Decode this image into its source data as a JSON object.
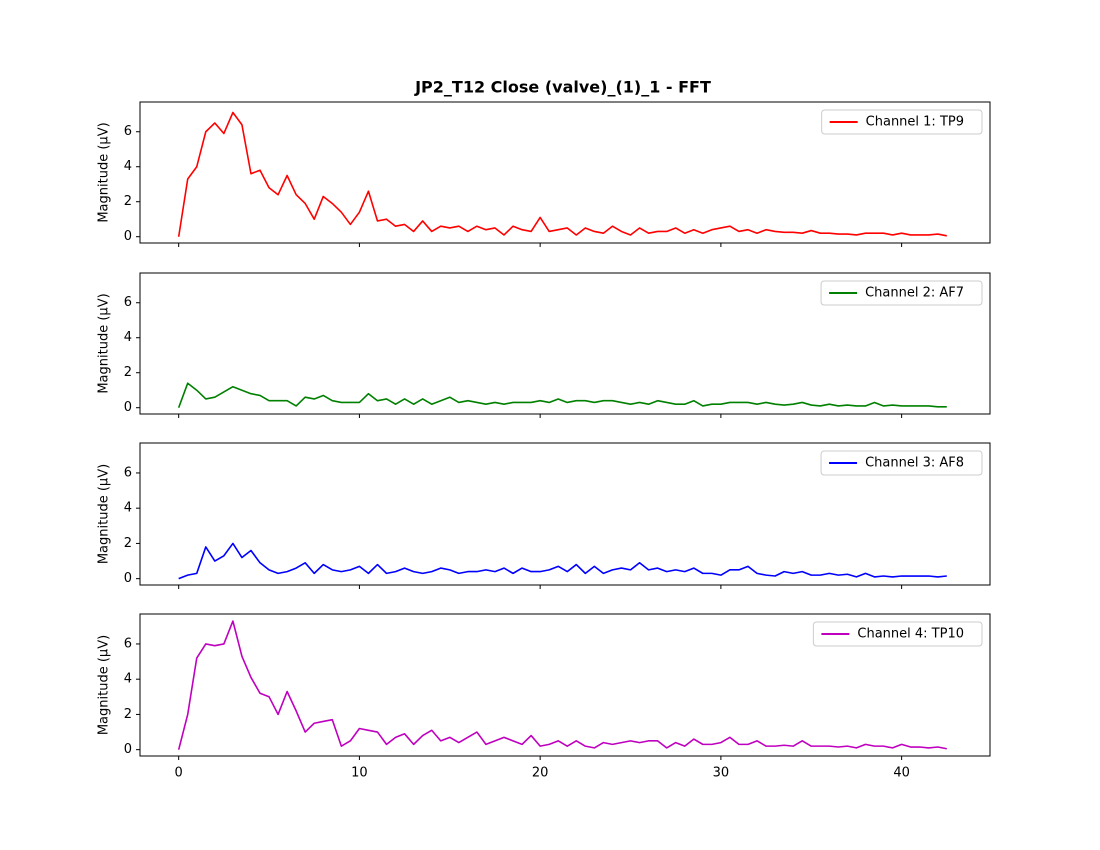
{
  "chart_data": [
    {
      "type": "line",
      "title": "JP2_T12 Close (valve)_(1)_1 - FFT",
      "ylabel": "Magnitude (μV)",
      "x": [
        0,
        0.5,
        1,
        1.5,
        2,
        2.5,
        3,
        3.5,
        4,
        4.5,
        5,
        5.5,
        6,
        6.5,
        7,
        7.5,
        8,
        8.5,
        9,
        9.5,
        10,
        10.5,
        11,
        11.5,
        12,
        12.5,
        13,
        13.5,
        14,
        14.5,
        15,
        15.5,
        16,
        16.5,
        17,
        17.5,
        18,
        18.5,
        19,
        19.5,
        20,
        20.5,
        21,
        21.5,
        22,
        22.5,
        23,
        23.5,
        24,
        24.5,
        25,
        25.5,
        26,
        26.5,
        27,
        27.5,
        28,
        28.5,
        29,
        29.5,
        30,
        30.5,
        31,
        31.5,
        32,
        32.5,
        33,
        33.5,
        34,
        34.5,
        35,
        35.5,
        36,
        36.5,
        37,
        37.5,
        38,
        38.5,
        39,
        39.5,
        40,
        40.5,
        41,
        41.5,
        42,
        42.5
      ],
      "series": [
        {
          "name": "Channel 1: TP9",
          "color": "#ff0000",
          "values": [
            0,
            3.3,
            4.0,
            6.0,
            6.5,
            5.9,
            7.1,
            6.4,
            3.6,
            3.8,
            2.8,
            2.4,
            3.5,
            2.4,
            1.9,
            1.0,
            2.3,
            1.9,
            1.4,
            0.7,
            1.4,
            2.6,
            0.9,
            1.0,
            0.6,
            0.7,
            0.3,
            0.9,
            0.3,
            0.6,
            0.5,
            0.6,
            0.3,
            0.6,
            0.4,
            0.5,
            0.1,
            0.6,
            0.4,
            0.3,
            1.1,
            0.3,
            0.4,
            0.5,
            0.1,
            0.5,
            0.3,
            0.2,
            0.6,
            0.3,
            0.1,
            0.5,
            0.2,
            0.3,
            0.3,
            0.5,
            0.2,
            0.4,
            0.2,
            0.4,
            0.5,
            0.6,
            0.3,
            0.4,
            0.2,
            0.4,
            0.3,
            0.25,
            0.25,
            0.2,
            0.35,
            0.2,
            0.2,
            0.15,
            0.15,
            0.1,
            0.2,
            0.2,
            0.2,
            0.1,
            0.2,
            0.1,
            0.1,
            0.1,
            0.15,
            0.05
          ]
        }
      ],
      "xlim": [
        -2.14,
        44.89
      ],
      "ylim": [
        -0.36,
        7.7
      ],
      "xticks": [
        0,
        10,
        20,
        30,
        40
      ],
      "yticks": [
        0,
        2,
        4,
        6
      ],
      "xtick_labels": false,
      "legend": "upper right"
    },
    {
      "type": "line",
      "ylabel": "Magnitude (μV)",
      "x": [
        0,
        0.5,
        1,
        1.5,
        2,
        2.5,
        3,
        3.5,
        4,
        4.5,
        5,
        5.5,
        6,
        6.5,
        7,
        7.5,
        8,
        8.5,
        9,
        9.5,
        10,
        10.5,
        11,
        11.5,
        12,
        12.5,
        13,
        13.5,
        14,
        14.5,
        15,
        15.5,
        16,
        16.5,
        17,
        17.5,
        18,
        18.5,
        19,
        19.5,
        20,
        20.5,
        21,
        21.5,
        22,
        22.5,
        23,
        23.5,
        24,
        24.5,
        25,
        25.5,
        26,
        26.5,
        27,
        27.5,
        28,
        28.5,
        29,
        29.5,
        30,
        30.5,
        31,
        31.5,
        32,
        32.5,
        33,
        33.5,
        34,
        34.5,
        35,
        35.5,
        36,
        36.5,
        37,
        37.5,
        38,
        38.5,
        39,
        39.5,
        40,
        40.5,
        41,
        41.5,
        42,
        42.5
      ],
      "series": [
        {
          "name": "Channel 2: AF7",
          "color": "#008000",
          "values": [
            0,
            1.4,
            1.0,
            0.5,
            0.6,
            0.9,
            1.2,
            1.0,
            0.8,
            0.7,
            0.4,
            0.4,
            0.4,
            0.1,
            0.6,
            0.5,
            0.7,
            0.4,
            0.3,
            0.3,
            0.3,
            0.8,
            0.4,
            0.5,
            0.2,
            0.5,
            0.2,
            0.5,
            0.2,
            0.4,
            0.6,
            0.3,
            0.4,
            0.3,
            0.2,
            0.3,
            0.2,
            0.3,
            0.3,
            0.3,
            0.4,
            0.3,
            0.5,
            0.3,
            0.4,
            0.4,
            0.3,
            0.4,
            0.4,
            0.3,
            0.2,
            0.3,
            0.2,
            0.4,
            0.3,
            0.2,
            0.2,
            0.4,
            0.1,
            0.2,
            0.2,
            0.3,
            0.3,
            0.3,
            0.2,
            0.3,
            0.2,
            0.15,
            0.2,
            0.3,
            0.15,
            0.1,
            0.2,
            0.1,
            0.15,
            0.1,
            0.1,
            0.3,
            0.1,
            0.15,
            0.1,
            0.1,
            0.1,
            0.1,
            0.05,
            0.05
          ]
        }
      ],
      "xlim": [
        -2.14,
        44.89
      ],
      "ylim": [
        -0.36,
        7.7
      ],
      "xticks": [
        0,
        10,
        20,
        30,
        40
      ],
      "yticks": [
        0,
        2,
        4,
        6
      ],
      "xtick_labels": false,
      "legend": "upper right"
    },
    {
      "type": "line",
      "ylabel": "Magnitude (μV)",
      "x": [
        0,
        0.5,
        1,
        1.5,
        2,
        2.5,
        3,
        3.5,
        4,
        4.5,
        5,
        5.5,
        6,
        6.5,
        7,
        7.5,
        8,
        8.5,
        9,
        9.5,
        10,
        10.5,
        11,
        11.5,
        12,
        12.5,
        13,
        13.5,
        14,
        14.5,
        15,
        15.5,
        16,
        16.5,
        17,
        17.5,
        18,
        18.5,
        19,
        19.5,
        20,
        20.5,
        21,
        21.5,
        22,
        22.5,
        23,
        23.5,
        24,
        24.5,
        25,
        25.5,
        26,
        26.5,
        27,
        27.5,
        28,
        28.5,
        29,
        29.5,
        30,
        30.5,
        31,
        31.5,
        32,
        32.5,
        33,
        33.5,
        34,
        34.5,
        35,
        35.5,
        36,
        36.5,
        37,
        37.5,
        38,
        38.5,
        39,
        39.5,
        40,
        40.5,
        41,
        41.5,
        42,
        42.5
      ],
      "series": [
        {
          "name": "Channel 3: AF8",
          "color": "#0000ff",
          "values": [
            0,
            0.2,
            0.3,
            1.8,
            1.0,
            1.3,
            2.0,
            1.2,
            1.6,
            0.9,
            0.5,
            0.3,
            0.4,
            0.6,
            0.9,
            0.3,
            0.8,
            0.5,
            0.4,
            0.5,
            0.7,
            0.3,
            0.8,
            0.3,
            0.4,
            0.6,
            0.4,
            0.3,
            0.4,
            0.6,
            0.5,
            0.3,
            0.4,
            0.4,
            0.5,
            0.4,
            0.6,
            0.3,
            0.6,
            0.4,
            0.4,
            0.5,
            0.7,
            0.4,
            0.8,
            0.3,
            0.7,
            0.3,
            0.5,
            0.6,
            0.5,
            0.9,
            0.5,
            0.6,
            0.4,
            0.5,
            0.4,
            0.6,
            0.3,
            0.3,
            0.2,
            0.5,
            0.5,
            0.7,
            0.3,
            0.2,
            0.15,
            0.4,
            0.3,
            0.4,
            0.2,
            0.2,
            0.3,
            0.2,
            0.25,
            0.1,
            0.3,
            0.1,
            0.15,
            0.1,
            0.15,
            0.15,
            0.15,
            0.15,
            0.1,
            0.15
          ]
        }
      ],
      "xlim": [
        -2.14,
        44.89
      ],
      "ylim": [
        -0.36,
        7.7
      ],
      "xticks": [
        0,
        10,
        20,
        30,
        40
      ],
      "yticks": [
        0,
        2,
        4,
        6
      ],
      "xtick_labels": false,
      "legend": "upper right"
    },
    {
      "type": "line",
      "ylabel": "Magnitude (μV)",
      "x": [
        0,
        0.5,
        1,
        1.5,
        2,
        2.5,
        3,
        3.5,
        4,
        4.5,
        5,
        5.5,
        6,
        6.5,
        7,
        7.5,
        8,
        8.5,
        9,
        9.5,
        10,
        10.5,
        11,
        11.5,
        12,
        12.5,
        13,
        13.5,
        14,
        14.5,
        15,
        15.5,
        16,
        16.5,
        17,
        17.5,
        18,
        18.5,
        19,
        19.5,
        20,
        20.5,
        21,
        21.5,
        22,
        22.5,
        23,
        23.5,
        24,
        24.5,
        25,
        25.5,
        26,
        26.5,
        27,
        27.5,
        28,
        28.5,
        29,
        29.5,
        30,
        30.5,
        31,
        31.5,
        32,
        32.5,
        33,
        33.5,
        34,
        34.5,
        35,
        35.5,
        36,
        36.5,
        37,
        37.5,
        38,
        38.5,
        39,
        39.5,
        40,
        40.5,
        41,
        41.5,
        42,
        42.5
      ],
      "series": [
        {
          "name": "Channel 4: TP10",
          "color": "#bf00bf",
          "values": [
            0,
            2.0,
            5.2,
            6.0,
            5.9,
            6.0,
            7.3,
            5.3,
            4.1,
            3.2,
            3.0,
            2.0,
            3.3,
            2.2,
            1.0,
            1.5,
            1.6,
            1.7,
            0.2,
            0.5,
            1.2,
            1.1,
            1.0,
            0.3,
            0.7,
            0.9,
            0.3,
            0.8,
            1.1,
            0.5,
            0.7,
            0.4,
            0.7,
            1.0,
            0.3,
            0.5,
            0.7,
            0.5,
            0.3,
            0.8,
            0.2,
            0.3,
            0.5,
            0.2,
            0.5,
            0.2,
            0.1,
            0.4,
            0.3,
            0.4,
            0.5,
            0.4,
            0.5,
            0.5,
            0.1,
            0.4,
            0.2,
            0.6,
            0.3,
            0.3,
            0.4,
            0.7,
            0.3,
            0.3,
            0.5,
            0.2,
            0.2,
            0.25,
            0.2,
            0.5,
            0.2,
            0.2,
            0.2,
            0.15,
            0.2,
            0.1,
            0.3,
            0.2,
            0.2,
            0.1,
            0.3,
            0.15,
            0.15,
            0.1,
            0.15,
            0.05
          ]
        }
      ],
      "xlim": [
        -2.14,
        44.89
      ],
      "ylim": [
        -0.36,
        7.7
      ],
      "xticks": [
        0,
        10,
        20,
        30,
        40
      ],
      "yticks": [
        0,
        2,
        4,
        6
      ],
      "xtick_labels": true,
      "legend": "upper right"
    }
  ]
}
